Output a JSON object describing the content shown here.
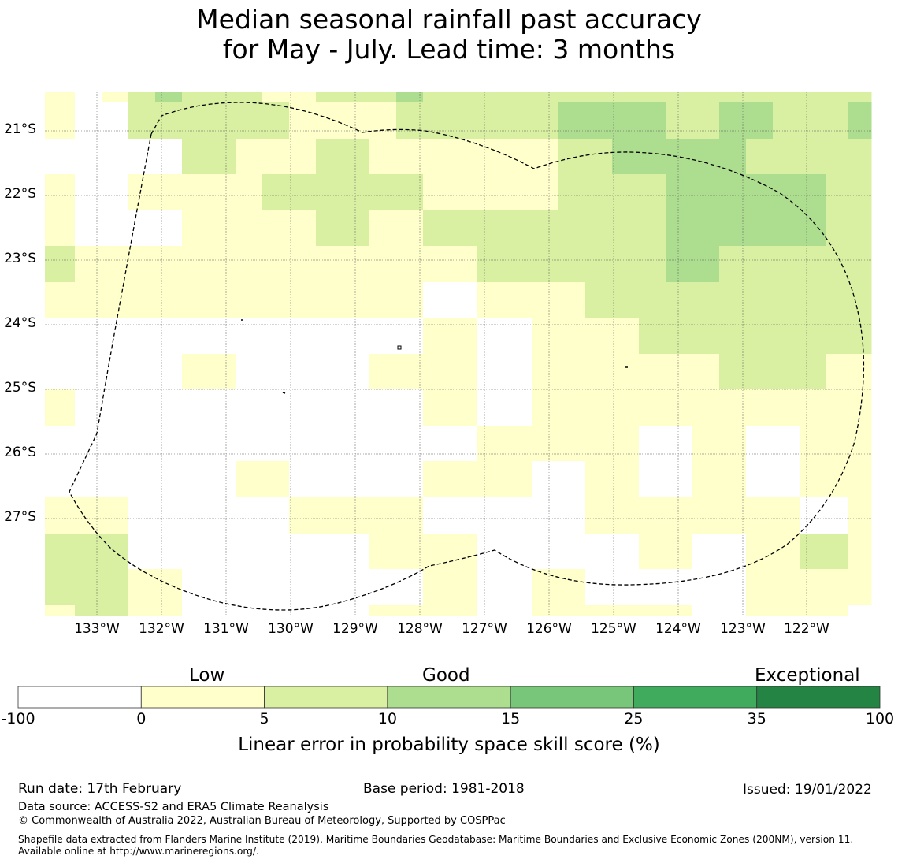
{
  "title": {
    "line1": "Median seasonal rainfall past accuracy",
    "line2": "for May - July. Lead time: 3 months"
  },
  "map": {
    "lon_labels": [
      "133°W",
      "132°W",
      "131°W",
      "130°W",
      "129°W",
      "128°W",
      "127°W",
      "126°W",
      "125°W",
      "124°W",
      "123°W",
      "122°W"
    ],
    "lat_labels": [
      "21°S",
      "22°S",
      "23°S",
      "24°S",
      "25°S",
      "26°S",
      "27°S"
    ],
    "grid_values": [
      [
        1,
        0,
        1,
        2,
        3,
        2,
        2,
        2,
        1,
        1,
        2,
        2,
        2,
        3,
        2,
        2,
        2,
        2,
        2,
        2,
        2,
        2,
        2,
        2,
        2,
        2,
        2,
        2,
        2,
        2,
        2,
        4
      ],
      [
        1,
        0,
        0,
        2,
        2,
        2,
        2,
        2,
        2,
        1,
        1,
        1,
        1,
        2,
        2,
        2,
        2,
        2,
        2,
        3,
        3,
        3,
        3,
        2,
        2,
        3,
        3,
        2,
        2,
        2,
        3,
        3
      ],
      [
        0,
        0,
        0,
        0,
        0,
        2,
        2,
        1,
        1,
        1,
        2,
        2,
        1,
        1,
        1,
        1,
        1,
        1,
        1,
        2,
        2,
        3,
        3,
        3,
        3,
        3,
        2,
        2,
        2,
        2,
        2,
        2
      ],
      [
        1,
        0,
        0,
        1,
        1,
        1,
        1,
        1,
        2,
        2,
        2,
        2,
        2,
        2,
        1,
        1,
        1,
        1,
        1,
        2,
        2,
        2,
        2,
        3,
        3,
        3,
        3,
        3,
        3,
        2,
        2,
        2
      ],
      [
        1,
        0,
        0,
        0,
        0,
        1,
        1,
        1,
        1,
        1,
        2,
        2,
        1,
        1,
        2,
        2,
        2,
        2,
        2,
        2,
        2,
        2,
        2,
        3,
        3,
        3,
        3,
        3,
        3,
        2,
        2,
        2
      ],
      [
        2,
        1,
        1,
        1,
        1,
        1,
        1,
        1,
        1,
        1,
        1,
        1,
        1,
        1,
        1,
        1,
        2,
        2,
        2,
        2,
        2,
        2,
        2,
        3,
        3,
        2,
        2,
        2,
        2,
        2,
        2,
        1
      ],
      [
        1,
        1,
        1,
        1,
        1,
        1,
        1,
        1,
        1,
        1,
        1,
        1,
        1,
        1,
        0,
        0,
        1,
        1,
        1,
        1,
        2,
        2,
        2,
        2,
        2,
        2,
        2,
        2,
        2,
        2,
        2,
        1
      ],
      [
        0,
        0,
        0,
        0,
        0,
        0,
        0,
        0,
        0,
        0,
        0,
        0,
        0,
        0,
        1,
        1,
        0,
        0,
        1,
        1,
        1,
        1,
        2,
        2,
        2,
        2,
        2,
        2,
        2,
        2,
        2,
        2
      ],
      [
        0,
        0,
        0,
        0,
        0,
        1,
        1,
        0,
        0,
        0,
        0,
        0,
        1,
        1,
        1,
        1,
        0,
        0,
        1,
        1,
        1,
        1,
        1,
        1,
        1,
        2,
        2,
        2,
        2,
        1,
        1,
        1
      ],
      [
        1,
        0,
        0,
        0,
        0,
        0,
        0,
        0,
        0,
        0,
        0,
        0,
        0,
        0,
        1,
        1,
        0,
        0,
        1,
        1,
        1,
        1,
        1,
        1,
        1,
        1,
        1,
        1,
        1,
        1,
        1,
        1
      ],
      [
        0,
        0,
        0,
        0,
        0,
        0,
        0,
        0,
        0,
        0,
        0,
        0,
        0,
        0,
        0,
        0,
        1,
        1,
        1,
        1,
        1,
        1,
        0,
        0,
        1,
        1,
        0,
        0,
        1,
        1,
        1,
        1
      ],
      [
        0,
        0,
        0,
        0,
        0,
        0,
        0,
        1,
        1,
        0,
        0,
        0,
        0,
        0,
        1,
        1,
        1,
        1,
        0,
        0,
        1,
        1,
        0,
        0,
        1,
        1,
        0,
        0,
        1,
        1,
        1,
        1
      ],
      [
        1,
        1,
        1,
        0,
        0,
        0,
        0,
        0,
        0,
        1,
        1,
        1,
        1,
        1,
        0,
        0,
        0,
        0,
        0,
        0,
        1,
        1,
        1,
        1,
        1,
        1,
        1,
        1,
        0,
        0,
        1,
        1
      ],
      [
        2,
        2,
        2,
        0,
        0,
        0,
        0,
        0,
        0,
        0,
        0,
        0,
        1,
        1,
        1,
        1,
        0,
        0,
        0,
        0,
        0,
        0,
        1,
        1,
        0,
        0,
        1,
        1,
        2,
        2,
        1,
        1
      ],
      [
        2,
        2,
        2,
        1,
        1,
        0,
        0,
        0,
        0,
        0,
        0,
        0,
        0,
        0,
        1,
        1,
        0,
        0,
        1,
        1,
        0,
        0,
        0,
        0,
        0,
        0,
        1,
        1,
        1,
        1,
        1,
        1
      ],
      [
        1,
        2,
        2,
        1,
        1,
        0,
        0,
        0,
        0,
        0,
        0,
        0,
        1,
        1,
        1,
        1,
        0,
        0,
        1,
        1,
        1,
        1,
        1,
        1,
        0,
        0,
        1,
        1,
        1,
        1,
        0,
        0
      ]
    ]
  },
  "legend": {
    "category_labels": [
      "Low",
      "Good",
      "Exceptional"
    ],
    "tick_labels": [
      "-100",
      "0",
      "5",
      "10",
      "15",
      "25",
      "35",
      "100"
    ],
    "colors": [
      "#ffffff",
      "#ffffcc",
      "#d9f0a3",
      "#addd8e",
      "#78c679",
      "#41ab5d",
      "#238443"
    ],
    "title": "Linear error in probability space skill score (%)"
  },
  "footer": {
    "run_date": "Run date: 17th February",
    "base_period": "Base period: 1981-2018",
    "issued": "Issued: 19/01/2022",
    "data_source": "Data source: ACCESS-S2 and ERA5 Climate Reanalysis",
    "copyright": "© Commonwealth of Australia 2022, Australian Bureau of Meteorology, Supported by COSPPac",
    "shapefile": "Shapefile data extracted from Flanders Marine Institute (2019), Maritime Boundaries Geodatabase: Maritime Boundaries and Exclusive Economic Zones (200NM), version 11. Available online at http://www.marineregions.org/."
  }
}
